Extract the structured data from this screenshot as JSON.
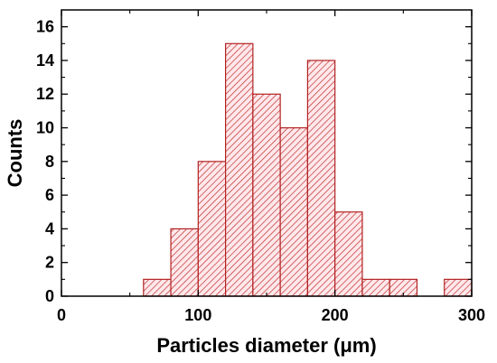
{
  "chart_data": {
    "type": "bar",
    "subtype": "histogram",
    "title": "",
    "xlabel": "Particles diameter (μm)",
    "ylabel": "Counts",
    "xlim": [
      0,
      300
    ],
    "ylim": [
      0,
      17
    ],
    "xticks": [
      0,
      100,
      200,
      300
    ],
    "yticks": [
      0,
      2,
      4,
      6,
      8,
      10,
      12,
      14,
      16
    ],
    "grid": false,
    "bin_width": 20,
    "bins": [
      {
        "start": 60,
        "end": 80,
        "count": 1
      },
      {
        "start": 80,
        "end": 100,
        "count": 4
      },
      {
        "start": 100,
        "end": 120,
        "count": 8
      },
      {
        "start": 120,
        "end": 140,
        "count": 15
      },
      {
        "start": 140,
        "end": 160,
        "count": 12
      },
      {
        "start": 160,
        "end": 180,
        "count": 10
      },
      {
        "start": 180,
        "end": 200,
        "count": 14
      },
      {
        "start": 200,
        "end": 220,
        "count": 5
      },
      {
        "start": 220,
        "end": 240,
        "count": 1
      },
      {
        "start": 240,
        "end": 260,
        "count": 1
      },
      {
        "start": 280,
        "end": 300,
        "count": 1
      }
    ],
    "colors": {
      "bar_edge": "#b22222",
      "bar_hatch": "#c0302a",
      "bar_fill": "#ffe8ec",
      "axis": "#000000"
    },
    "fill_pattern": "diagonal-hatch"
  }
}
